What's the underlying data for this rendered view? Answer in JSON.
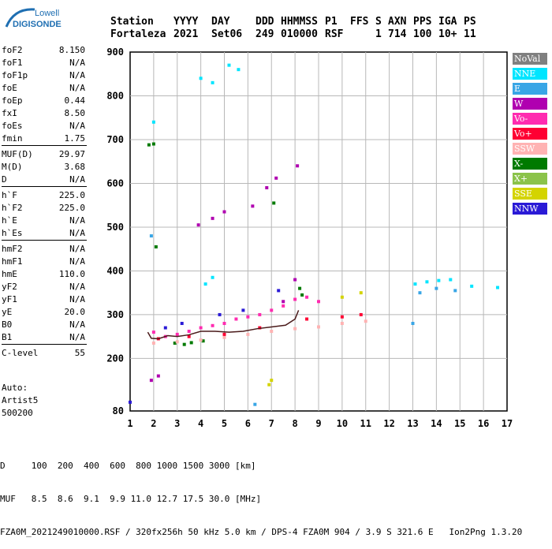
{
  "logo": {
    "line1": "Lowell",
    "line2": "DIGISONDE"
  },
  "header": {
    "labels": [
      "Station",
      "YYYY",
      "DAY",
      "DDD",
      "HHMMSS",
      "P1",
      "FFS",
      "S",
      "AXN",
      "PPS",
      "IGA",
      "PS"
    ],
    "values": [
      "Fortaleza",
      "2021",
      "Set06",
      "249",
      "010000",
      "RSF",
      "",
      "1",
      "714",
      "100",
      "10+",
      "11"
    ]
  },
  "params": {
    "group1": [
      {
        "name": "foF2",
        "value": "8.150"
      },
      {
        "name": "foF1",
        "value": "N/A"
      },
      {
        "name": "foF1p",
        "value": "N/A"
      },
      {
        "name": "foE",
        "value": "N/A"
      },
      {
        "name": "foEp",
        "value": "0.44"
      },
      {
        "name": "fxI",
        "value": "8.50"
      },
      {
        "name": "foEs",
        "value": "N/A"
      },
      {
        "name": "fmin",
        "value": "1.75"
      }
    ],
    "group2": [
      {
        "name": "MUF(D)",
        "value": "29.97"
      },
      {
        "name": "M(D)",
        "value": "3.68"
      },
      {
        "name": "D",
        "value": "N/A"
      }
    ],
    "group3": [
      {
        "name": "h`F",
        "value": "225.0"
      },
      {
        "name": "h`F2",
        "value": "225.0"
      },
      {
        "name": "h`E",
        "value": "N/A"
      },
      {
        "name": "h`Es",
        "value": "N/A"
      }
    ],
    "group4": [
      {
        "name": "hmF2",
        "value": "N/A"
      },
      {
        "name": "hmF1",
        "value": "N/A"
      },
      {
        "name": "hmE",
        "value": "110.0"
      },
      {
        "name": "yF2",
        "value": "N/A"
      },
      {
        "name": "yF1",
        "value": "N/A"
      },
      {
        "name": "yE",
        "value": "20.0"
      },
      {
        "name": "B0",
        "value": "N/A"
      },
      {
        "name": "B1",
        "value": "N/A"
      }
    ],
    "group5": [
      {
        "name": "C-level",
        "value": "55"
      }
    ]
  },
  "auto": {
    "line1": "Auto:",
    "line2": "Artist5",
    "line3": "500200"
  },
  "legend": [
    {
      "label": "NoVal",
      "color": "#808080"
    },
    {
      "label": "NNE",
      "color": "#00e5ff"
    },
    {
      "label": "E",
      "color": "#39a6e6"
    },
    {
      "label": "W",
      "color": "#b000b0"
    },
    {
      "label": "Vo-",
      "color": "#ff2bb0"
    },
    {
      "label": "Vo+",
      "color": "#ff0033"
    },
    {
      "label": "SSW",
      "color": "#ffb3b3"
    },
    {
      "label": "X-",
      "color": "#007a00"
    },
    {
      "label": "X+",
      "color": "#8bc34a"
    },
    {
      "label": "SSE",
      "color": "#d4d400"
    },
    {
      "label": "NNW",
      "color": "#2a1ad6"
    }
  ],
  "footer": {
    "line1": "D     100  200  400  600  800 1000 1500 3000 [km]",
    "line2": "MUF   8.5  8.6  9.1  9.9 11.0 12.7 17.5 30.0 [MHz]",
    "line3": "FZA0M_2021249010000.RSF / 320fx256h 50 kHz 5.0 km / DPS-4 FZA0M 904 / 3.9 S 321.6 E   Ion2Png 1.3.20"
  },
  "chart_data": {
    "type": "scatter",
    "xlabel": "",
    "ylabel": "",
    "xlim": [
      1,
      17
    ],
    "ylim": [
      80,
      900
    ],
    "x_ticks": [
      1,
      2,
      3,
      4,
      5,
      6,
      7,
      8,
      9,
      10,
      11,
      12,
      13,
      14,
      15,
      16,
      17
    ],
    "y_ticks": [
      80,
      200,
      300,
      400,
      500,
      600,
      700,
      800,
      900
    ],
    "grid": true,
    "series": [
      {
        "name": "X-",
        "color": "#007a00",
        "points": [
          [
            1.8,
            688
          ],
          [
            2.0,
            690
          ],
          [
            2.1,
            455
          ],
          [
            2.9,
            235
          ],
          [
            3.3,
            232
          ],
          [
            3.6,
            236
          ],
          [
            4.1,
            240
          ],
          [
            7.1,
            555
          ],
          [
            8.2,
            360
          ],
          [
            8.3,
            345
          ]
        ]
      },
      {
        "name": "W",
        "color": "#b000b0",
        "points": [
          [
            1.9,
            150
          ],
          [
            2.2,
            160
          ],
          [
            3.9,
            505
          ],
          [
            4.5,
            520
          ],
          [
            5.0,
            535
          ],
          [
            6.2,
            548
          ],
          [
            6.8,
            590
          ],
          [
            7.2,
            612
          ],
          [
            8.1,
            640
          ],
          [
            8.0,
            380
          ],
          [
            7.5,
            330
          ]
        ]
      },
      {
        "name": "Vo-",
        "color": "#ff2bb0",
        "points": [
          [
            2.0,
            260
          ],
          [
            2.5,
            250
          ],
          [
            3.0,
            255
          ],
          [
            3.5,
            262
          ],
          [
            4.0,
            270
          ],
          [
            4.5,
            275
          ],
          [
            5.0,
            280
          ],
          [
            5.5,
            290
          ],
          [
            6.0,
            295
          ],
          [
            6.5,
            300
          ],
          [
            7.0,
            310
          ],
          [
            7.5,
            320
          ],
          [
            8.0,
            335
          ],
          [
            8.5,
            340
          ],
          [
            9.0,
            330
          ]
        ]
      },
      {
        "name": "SSW",
        "color": "#ffb3b3",
        "points": [
          [
            2.0,
            235
          ],
          [
            3.0,
            238
          ],
          [
            4.0,
            242
          ],
          [
            5.0,
            248
          ],
          [
            6.0,
            255
          ],
          [
            7.0,
            262
          ],
          [
            8.0,
            268
          ],
          [
            9.0,
            272
          ],
          [
            10.0,
            280
          ],
          [
            11.0,
            285
          ]
        ]
      },
      {
        "name": "NNE",
        "color": "#00e5ff",
        "points": [
          [
            2.0,
            740
          ],
          [
            4.0,
            840
          ],
          [
            4.5,
            830
          ],
          [
            5.2,
            870
          ],
          [
            5.6,
            860
          ],
          [
            4.2,
            370
          ],
          [
            4.5,
            385
          ],
          [
            13.1,
            370
          ],
          [
            13.6,
            375
          ],
          [
            14.1,
            378
          ],
          [
            14.6,
            380
          ],
          [
            15.5,
            365
          ],
          [
            16.6,
            362
          ]
        ]
      },
      {
        "name": "E",
        "color": "#39a6e6",
        "points": [
          [
            13.3,
            350
          ],
          [
            14.0,
            360
          ],
          [
            14.8,
            355
          ],
          [
            13.0,
            280
          ],
          [
            1.9,
            480
          ],
          [
            6.3,
            95
          ]
        ]
      },
      {
        "name": "SSE",
        "color": "#d4d400",
        "points": [
          [
            10.0,
            340
          ],
          [
            10.8,
            350
          ],
          [
            7.0,
            150
          ],
          [
            6.9,
            140
          ]
        ]
      },
      {
        "name": "NNW",
        "color": "#2a1ad6",
        "points": [
          [
            1.0,
            100
          ],
          [
            2.5,
            270
          ],
          [
            3.2,
            280
          ],
          [
            4.8,
            300
          ],
          [
            5.8,
            310
          ],
          [
            7.3,
            355
          ]
        ]
      },
      {
        "name": "Vo+",
        "color": "#ff0033",
        "points": [
          [
            2.2,
            245
          ],
          [
            3.5,
            250
          ],
          [
            5.0,
            255
          ],
          [
            6.5,
            270
          ],
          [
            8.5,
            290
          ],
          [
            10.0,
            295
          ],
          [
            10.8,
            300
          ]
        ]
      }
    ],
    "trace": {
      "color": "#4a1a1a",
      "points": [
        [
          1.75,
          260
        ],
        [
          1.9,
          246
        ],
        [
          2.2,
          245
        ],
        [
          2.6,
          252
        ],
        [
          3.0,
          250
        ],
        [
          3.5,
          254
        ],
        [
          4.0,
          262
        ],
        [
          4.6,
          262
        ],
        [
          5.2,
          260
        ],
        [
          5.8,
          262
        ],
        [
          6.4,
          268
        ],
        [
          7.0,
          272
        ],
        [
          7.6,
          276
        ],
        [
          8.0,
          290
        ],
        [
          8.15,
          310
        ]
      ]
    }
  }
}
